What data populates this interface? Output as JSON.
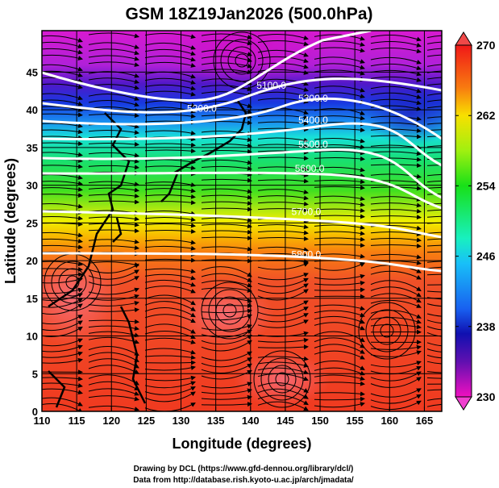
{
  "chart_data": {
    "type": "heatmap",
    "title": "GSM 18Z19Jan2026 (500.0hPa)",
    "xlabel": "Longitude (degrees)",
    "ylabel": "Latitude  (degrees)",
    "xlim": [
      110,
      167.5
    ],
    "ylim": [
      0,
      50.5
    ],
    "xticks": [
      110,
      115,
      120,
      125,
      130,
      135,
      140,
      145,
      150,
      155,
      160,
      165
    ],
    "yticks": [
      0,
      5,
      10,
      15,
      20,
      25,
      30,
      35,
      40,
      45
    ],
    "grid": true,
    "shaded_variable": "temperature (K)",
    "colorbar": {
      "range": [
        230,
        270
      ],
      "ticks": [
        230,
        238,
        246,
        254,
        262,
        270
      ],
      "placement": "right",
      "extend": "both"
    },
    "contours": {
      "variable": "geopotential height (m)",
      "color": "#ffffff",
      "levels": [
        {
          "value": 5100,
          "label": "5100.0",
          "label_lon": 143,
          "label_lat": 43.2
        },
        {
          "value": 5200,
          "label": "5200.0",
          "label_lon": 133,
          "label_lat": 40.2
        },
        {
          "value": 5300,
          "label": "5300.0",
          "label_lon": 149,
          "label_lat": 41.5
        },
        {
          "value": 5400,
          "label": "5400.0",
          "label_lon": 149,
          "label_lat": 38.6
        },
        {
          "value": 5500,
          "label": "5500.0",
          "label_lon": 149,
          "label_lat": 35.4
        },
        {
          "value": 5600,
          "label": "5600.0",
          "label_lon": 148.5,
          "label_lat": 32.2
        },
        {
          "value": 5700,
          "label": "5700.0",
          "label_lon": 148,
          "label_lat": 26.5
        },
        {
          "value": 5800,
          "label": "5800.0",
          "label_lon": 148,
          "label_lat": 20.8
        }
      ]
    },
    "overlay": "streamlines (wind)",
    "credits": [
      "Drawing by DCL (https://www.gfd-dennou.org/library/dcl/)",
      "Data from http://database.rish.kyoto-u.ac.jp/arch/jmadata/"
    ]
  }
}
